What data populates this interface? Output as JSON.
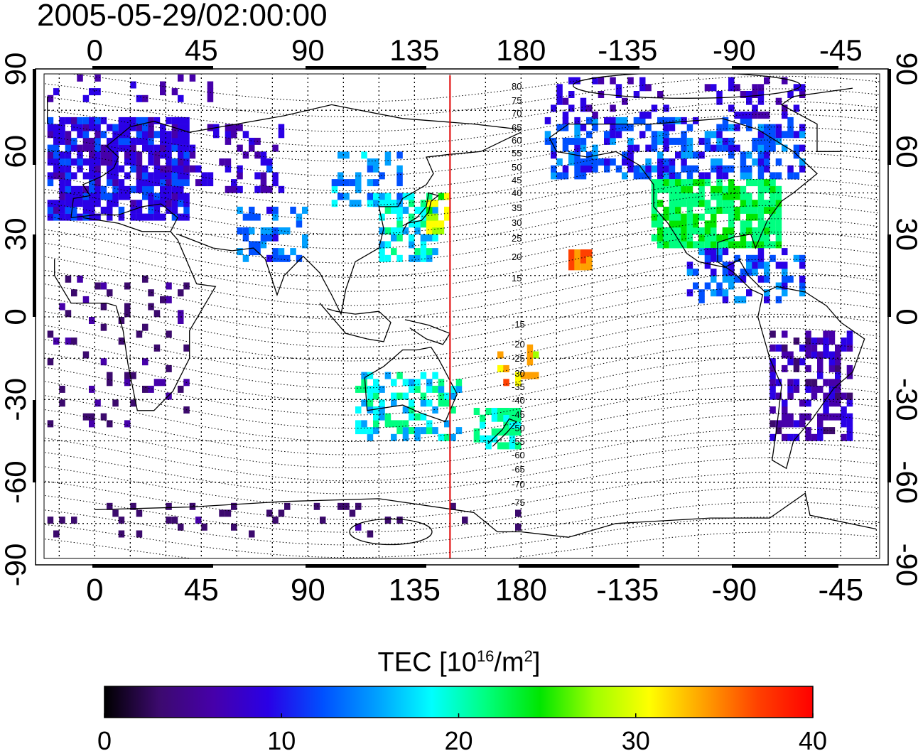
{
  "timestamp": "2005-05-29/02:00:00",
  "map": {
    "lon_ticks": [
      "0",
      "45",
      "90",
      "135",
      "180",
      "-135",
      "-90",
      "-45"
    ],
    "lat_ticks": [
      "90",
      "60",
      "30",
      "0",
      "-30",
      "-60",
      "-90"
    ],
    "magnetic_lat_labels": [
      "80",
      "75",
      "70",
      "65",
      "60",
      "55",
      "50",
      "45",
      "40",
      "35",
      "30",
      "25",
      "20",
      "15",
      "-15",
      "-20",
      "-25",
      "-30",
      "-35",
      "-40",
      "-45",
      "-50",
      "-55",
      "-60",
      "-65",
      "-70",
      "-75"
    ],
    "meridian_longitude": 150,
    "meridian_color": "#e00000",
    "grid": true,
    "coastlines": true
  },
  "colorbar": {
    "title_prefix": "TEC  [10",
    "title_exp1": "16",
    "title_mid": "/m",
    "title_exp2": "2",
    "title_suffix": "]",
    "min": 0,
    "max": 40,
    "tick_labels": [
      "0",
      "10",
      "20",
      "30",
      "40"
    ],
    "colors": [
      "#000000",
      "#3c0a6e",
      "#4600aa",
      "#2a00e6",
      "#0050ff",
      "#00a0ff",
      "#00ffff",
      "#00ff80",
      "#00e600",
      "#a0ff00",
      "#ffff00",
      "#ffa000",
      "#ff4000",
      "#ff0000"
    ]
  }
}
